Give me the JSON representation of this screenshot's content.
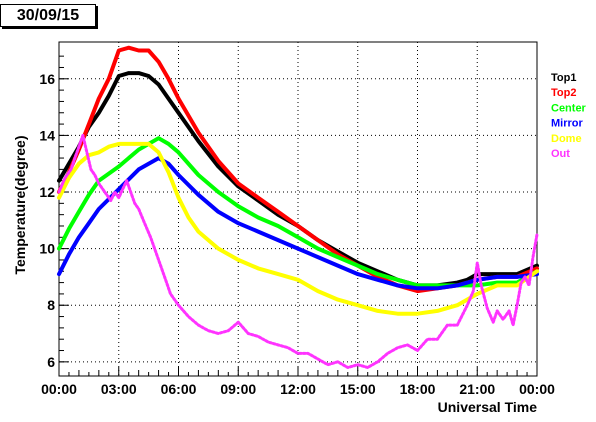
{
  "title": "30/09/15",
  "chart_data": {
    "type": "line",
    "xlabel": "Universal Time",
    "ylabel": "Temperature(degree)",
    "xlim": [
      0,
      24
    ],
    "ylim": [
      5.5,
      17.3
    ],
    "xticks": [
      {
        "value": 0,
        "label": "00:00"
      },
      {
        "value": 3,
        "label": "03:00"
      },
      {
        "value": 6,
        "label": "06:00"
      },
      {
        "value": 9,
        "label": "09:00"
      },
      {
        "value": 12,
        "label": "12:00"
      },
      {
        "value": 15,
        "label": "15:00"
      },
      {
        "value": 18,
        "label": "18:00"
      },
      {
        "value": 21,
        "label": "21:00"
      },
      {
        "value": 24,
        "label": "00:00"
      }
    ],
    "yticks": [
      {
        "value": 6,
        "label": "6"
      },
      {
        "value": 8,
        "label": "8"
      },
      {
        "value": 10,
        "label": "10"
      },
      {
        "value": 12,
        "label": "12"
      },
      {
        "value": 14,
        "label": "14"
      },
      {
        "value": 16,
        "label": "16"
      }
    ],
    "grid": true,
    "legend_position": "right",
    "series": [
      {
        "name": "Top1",
        "color": "#000000",
        "points": [
          [
            0,
            12.4
          ],
          [
            0.5,
            13.0
          ],
          [
            1,
            13.6
          ],
          [
            1.5,
            14.3
          ],
          [
            2,
            14.8
          ],
          [
            2.5,
            15.4
          ],
          [
            3,
            16.1
          ],
          [
            3.5,
            16.2
          ],
          [
            4,
            16.2
          ],
          [
            4.5,
            16.1
          ],
          [
            5,
            15.8
          ],
          [
            5.5,
            15.3
          ],
          [
            6,
            14.8
          ],
          [
            7,
            13.8
          ],
          [
            8,
            12.9
          ],
          [
            9,
            12.2
          ],
          [
            10,
            11.7
          ],
          [
            11,
            11.2
          ],
          [
            12,
            10.8
          ],
          [
            13,
            10.3
          ],
          [
            14,
            9.9
          ],
          [
            15,
            9.5
          ],
          [
            16,
            9.2
          ],
          [
            17,
            8.9
          ],
          [
            18,
            8.7
          ],
          [
            19,
            8.7
          ],
          [
            20,
            8.8
          ],
          [
            20.5,
            8.9
          ],
          [
            21,
            9.1
          ],
          [
            21.5,
            9.1
          ],
          [
            22,
            9.1
          ],
          [
            23,
            9.1
          ],
          [
            24,
            9.4
          ]
        ]
      },
      {
        "name": "Top2",
        "color": "#ff0000",
        "points": [
          [
            0,
            12.0
          ],
          [
            0.5,
            12.7
          ],
          [
            1,
            13.5
          ],
          [
            1.5,
            14.4
          ],
          [
            2,
            15.3
          ],
          [
            2.5,
            16.0
          ],
          [
            3,
            17.0
          ],
          [
            3.5,
            17.1
          ],
          [
            4,
            17.0
          ],
          [
            4.5,
            17.0
          ],
          [
            5,
            16.6
          ],
          [
            5.5,
            16.0
          ],
          [
            6,
            15.3
          ],
          [
            7,
            14.1
          ],
          [
            8,
            13.1
          ],
          [
            9,
            12.3
          ],
          [
            10,
            11.8
          ],
          [
            11,
            11.3
          ],
          [
            12,
            10.8
          ],
          [
            13,
            10.3
          ],
          [
            14,
            9.8
          ],
          [
            15,
            9.4
          ],
          [
            16,
            9.0
          ],
          [
            17,
            8.7
          ],
          [
            18,
            8.5
          ],
          [
            19,
            8.6
          ],
          [
            20,
            8.7
          ],
          [
            21,
            8.9
          ],
          [
            22,
            9.0
          ],
          [
            23,
            9.0
          ],
          [
            24,
            9.3
          ]
        ]
      },
      {
        "name": "Center",
        "color": "#00ff00",
        "points": [
          [
            0,
            10.0
          ],
          [
            0.5,
            10.7
          ],
          [
            1,
            11.3
          ],
          [
            1.5,
            11.9
          ],
          [
            2,
            12.4
          ],
          [
            3,
            12.9
          ],
          [
            4,
            13.5
          ],
          [
            5,
            13.9
          ],
          [
            5.5,
            13.7
          ],
          [
            6,
            13.4
          ],
          [
            7,
            12.6
          ],
          [
            8,
            12.0
          ],
          [
            9,
            11.5
          ],
          [
            10,
            11.1
          ],
          [
            11,
            10.8
          ],
          [
            12,
            10.4
          ],
          [
            13,
            10.0
          ],
          [
            14,
            9.7
          ],
          [
            15,
            9.4
          ],
          [
            16,
            9.1
          ],
          [
            17,
            8.9
          ],
          [
            18,
            8.7
          ],
          [
            19,
            8.7
          ],
          [
            20,
            8.7
          ],
          [
            21,
            8.7
          ],
          [
            22,
            8.8
          ],
          [
            23,
            8.8
          ],
          [
            24,
            9.2
          ]
        ]
      },
      {
        "name": "Mirror",
        "color": "#0000ff",
        "points": [
          [
            0,
            9.1
          ],
          [
            0.5,
            9.8
          ],
          [
            1,
            10.4
          ],
          [
            1.5,
            10.9
          ],
          [
            2,
            11.4
          ],
          [
            3,
            12.1
          ],
          [
            4,
            12.8
          ],
          [
            5,
            13.2
          ],
          [
            5.5,
            13.0
          ],
          [
            6,
            12.6
          ],
          [
            7,
            11.9
          ],
          [
            8,
            11.3
          ],
          [
            9,
            10.9
          ],
          [
            10,
            10.6
          ],
          [
            11,
            10.3
          ],
          [
            12,
            10.0
          ],
          [
            13,
            9.7
          ],
          [
            14,
            9.4
          ],
          [
            15,
            9.1
          ],
          [
            16,
            8.9
          ],
          [
            17,
            8.7
          ],
          [
            18,
            8.6
          ],
          [
            19,
            8.6
          ],
          [
            20,
            8.7
          ],
          [
            21,
            8.9
          ],
          [
            22,
            9.0
          ],
          [
            23,
            9.0
          ],
          [
            24,
            9.1
          ]
        ]
      },
      {
        "name": "Dome",
        "color": "#ffff00",
        "points": [
          [
            0,
            11.8
          ],
          [
            0.5,
            12.5
          ],
          [
            1,
            13.0
          ],
          [
            1.5,
            13.3
          ],
          [
            2,
            13.4
          ],
          [
            2.5,
            13.6
          ],
          [
            3,
            13.7
          ],
          [
            4,
            13.7
          ],
          [
            4.5,
            13.7
          ],
          [
            5,
            13.4
          ],
          [
            5.5,
            12.7
          ],
          [
            6,
            11.8
          ],
          [
            6.5,
            11.1
          ],
          [
            7,
            10.6
          ],
          [
            8,
            10.0
          ],
          [
            9,
            9.6
          ],
          [
            10,
            9.3
          ],
          [
            11,
            9.1
          ],
          [
            12,
            8.9
          ],
          [
            13,
            8.5
          ],
          [
            14,
            8.2
          ],
          [
            15,
            8.0
          ],
          [
            16,
            7.8
          ],
          [
            17,
            7.7
          ],
          [
            18,
            7.7
          ],
          [
            19,
            7.8
          ],
          [
            20,
            8.0
          ],
          [
            21,
            8.4
          ],
          [
            22,
            8.7
          ],
          [
            23,
            8.7
          ],
          [
            24,
            9.2
          ]
        ]
      },
      {
        "name": "Out",
        "color": "#ff33ff",
        "points": [
          [
            0,
            12.0
          ],
          [
            0.3,
            12.5
          ],
          [
            0.6,
            12.8
          ],
          [
            0.8,
            13.2
          ],
          [
            1.0,
            13.6
          ],
          [
            1.2,
            14.0
          ],
          [
            1.4,
            13.4
          ],
          [
            1.6,
            12.8
          ],
          [
            1.8,
            12.6
          ],
          [
            2.0,
            12.3
          ],
          [
            2.2,
            12.1
          ],
          [
            2.4,
            11.9
          ],
          [
            2.6,
            11.7
          ],
          [
            2.8,
            12.0
          ],
          [
            3.0,
            11.8
          ],
          [
            3.2,
            12.1
          ],
          [
            3.4,
            12.4
          ],
          [
            3.6,
            12.0
          ],
          [
            3.8,
            11.6
          ],
          [
            4.0,
            11.4
          ],
          [
            4.3,
            10.9
          ],
          [
            4.6,
            10.4
          ],
          [
            5.0,
            9.6
          ],
          [
            5.3,
            9.0
          ],
          [
            5.6,
            8.4
          ],
          [
            6.0,
            8.0
          ],
          [
            6.5,
            7.6
          ],
          [
            7.0,
            7.3
          ],
          [
            7.5,
            7.1
          ],
          [
            8.0,
            7.0
          ],
          [
            8.5,
            7.1
          ],
          [
            9.0,
            7.4
          ],
          [
            9.5,
            7.0
          ],
          [
            10,
            6.9
          ],
          [
            10.5,
            6.7
          ],
          [
            11,
            6.6
          ],
          [
            11.5,
            6.5
          ],
          [
            12,
            6.3
          ],
          [
            12.5,
            6.3
          ],
          [
            13,
            6.1
          ],
          [
            13.5,
            5.9
          ],
          [
            14,
            6.0
          ],
          [
            14.5,
            5.8
          ],
          [
            15,
            5.9
          ],
          [
            15.5,
            5.8
          ],
          [
            16,
            6.0
          ],
          [
            16.5,
            6.3
          ],
          [
            17,
            6.5
          ],
          [
            17.5,
            6.6
          ],
          [
            18,
            6.4
          ],
          [
            18.5,
            6.8
          ],
          [
            19,
            6.8
          ],
          [
            19.5,
            7.3
          ],
          [
            20,
            7.3
          ],
          [
            20.5,
            8.0
          ],
          [
            20.8,
            8.5
          ],
          [
            21,
            9.5
          ],
          [
            21.2,
            8.7
          ],
          [
            21.5,
            7.9
          ],
          [
            21.8,
            7.4
          ],
          [
            22,
            7.8
          ],
          [
            22.3,
            7.5
          ],
          [
            22.6,
            7.8
          ],
          [
            22.8,
            7.3
          ],
          [
            23,
            8.0
          ],
          [
            23.2,
            8.8
          ],
          [
            23.4,
            9.0
          ],
          [
            23.6,
            8.7
          ],
          [
            23.8,
            9.7
          ],
          [
            24,
            10.5
          ]
        ]
      }
    ]
  }
}
